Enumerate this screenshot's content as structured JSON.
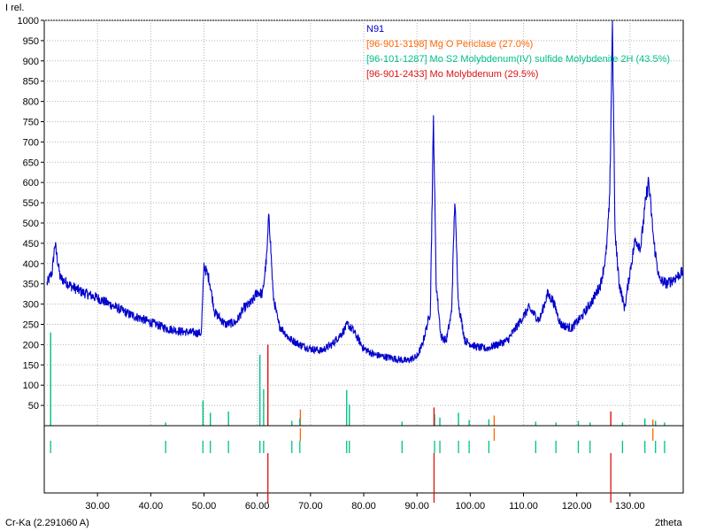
{
  "chart_data": {
    "type": "line",
    "title": "",
    "ylabel": "I rel.",
    "xlabel": "2theta",
    "radiation_label": "Cr-Ka (2.291060 A)",
    "xlim": [
      20,
      140
    ],
    "ylim": [
      0,
      1000
    ],
    "x_ticks": [
      "30.00",
      "40.00",
      "50.00",
      "60.00",
      "70.00",
      "80.00",
      "90.00",
      "100.00",
      "110.00",
      "120.00",
      "130.00"
    ],
    "y_ticks": [
      "50",
      "100",
      "150",
      "200",
      "250",
      "300",
      "350",
      "400",
      "450",
      "500",
      "550",
      "600",
      "650",
      "700",
      "750",
      "800",
      "850",
      "900",
      "950",
      "1000"
    ],
    "grid": true,
    "legend_position": "top-center",
    "series": [
      {
        "name": "N91",
        "color": "#0000cc",
        "x": [
          20.5,
          21.5,
          22.0,
          23,
          25,
          27,
          30,
          33,
          36,
          40,
          43,
          46,
          48,
          49.5,
          50,
          51,
          52,
          54,
          56,
          57.5,
          59,
          60,
          61,
          61.8,
          62.2,
          63,
          64,
          66,
          68,
          70,
          72,
          74,
          76,
          77,
          78,
          80,
          82,
          84,
          86,
          88,
          90,
          91,
          92.5,
          93.1,
          93.6,
          94.5,
          95.5,
          96.5,
          97.1,
          97.8,
          99,
          101,
          103,
          105,
          107,
          109,
          111,
          113,
          114.5,
          115.5,
          117,
          119,
          121,
          123,
          124.5,
          125.5,
          126.2,
          126.7,
          127.2,
          128,
          129,
          130,
          131,
          132,
          133,
          133.5,
          134.5,
          135.5,
          137,
          139,
          140
        ],
        "values": [
          350,
          380,
          450,
          365,
          345,
          330,
          315,
          295,
          275,
          255,
          240,
          232,
          230,
          228,
          395,
          360,
          280,
          250,
          255,
          290,
          305,
          330,
          325,
          420,
          525,
          320,
          250,
          215,
          200,
          190,
          185,
          200,
          230,
          250,
          235,
          190,
          175,
          170,
          165,
          160,
          170,
          200,
          280,
          760,
          350,
          220,
          210,
          280,
          560,
          300,
          210,
          195,
          190,
          200,
          210,
          250,
          290,
          260,
          325,
          310,
          250,
          240,
          270,
          310,
          350,
          420,
          560,
          1000,
          470,
          350,
          290,
          380,
          460,
          440,
          560,
          605,
          450,
          360,
          350,
          370,
          380
        ]
      }
    ],
    "reference_patterns": [
      {
        "name": "[96-901-3198] Mg O Periclase (27.0%)",
        "color": "#ff6600",
        "peaks_x": [
          68.1,
          104.5,
          134.3
        ],
        "peaks_i": [
          40,
          25,
          15
        ]
      },
      {
        "name": "[96-101-1287] Mo S2 Molybdenum(IV) sulfide Molybdenite 2H (43.5%)",
        "color": "#00c08a",
        "peaks_x": [
          21.2,
          42.8,
          49.8,
          51.2,
          54.6,
          60.5,
          61.2,
          66.5,
          68.0,
          76.8,
          77.3,
          87.2,
          93.3,
          94.3,
          97.8,
          99.8,
          103.5,
          112.3,
          116.1,
          120.3,
          122.5,
          128.6,
          132.8,
          134.8,
          136.5
        ],
        "peaks_i": [
          230,
          8,
          62,
          32,
          35,
          175,
          90,
          12,
          18,
          88,
          52,
          10,
          28,
          20,
          32,
          14,
          16,
          10,
          8,
          12,
          8,
          8,
          18,
          12,
          8
        ]
      },
      {
        "name": "[96-901-2433] Mo Molybdenum (29.5%)",
        "color": "#dd1111",
        "peaks_x": [
          62.0,
          93.2,
          126.4
        ],
        "peaks_i": [
          200,
          45,
          35
        ]
      }
    ]
  }
}
